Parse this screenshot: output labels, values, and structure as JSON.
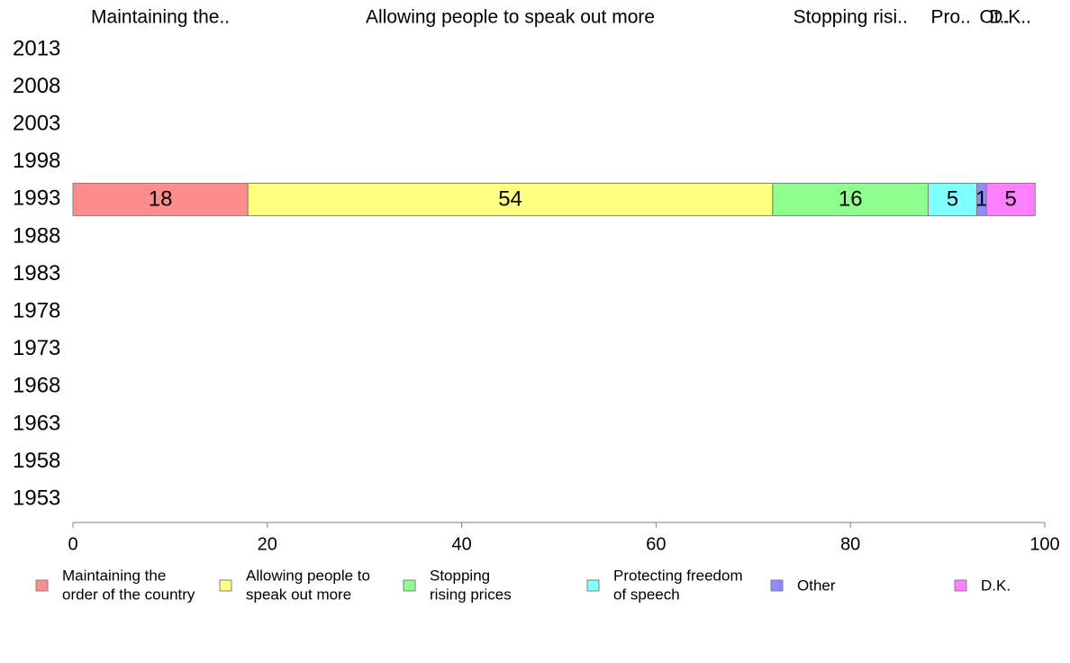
{
  "chart_data": {
    "type": "bar",
    "orientation": "horizontal",
    "stacked": true,
    "categories": [
      "2013",
      "2008",
      "2003",
      "1998",
      "1993",
      "1988",
      "1983",
      "1978",
      "1973",
      "1968",
      "1963",
      "1958",
      "1953"
    ],
    "series": [
      {
        "name": "Maintaining the order of the country",
        "legend_lines": [
          "Maintaining the",
          "order of the country"
        ],
        "top_label": "Maintaining the..",
        "color": "#FF8C8C",
        "values": [
          null,
          null,
          null,
          null,
          18,
          null,
          null,
          null,
          null,
          null,
          null,
          null,
          null
        ]
      },
      {
        "name": "Allowing people to speak out more",
        "legend_lines": [
          "Allowing people to",
          "speak out more"
        ],
        "top_label": "Allowing people to speak out more",
        "color": "#FFFF80",
        "values": [
          null,
          null,
          null,
          null,
          54,
          null,
          null,
          null,
          null,
          null,
          null,
          null,
          null
        ]
      },
      {
        "name": "Stopping rising prices",
        "legend_lines": [
          "Stopping",
          "rising prices"
        ],
        "top_label": "Stopping risi..",
        "color": "#8CFF8C",
        "values": [
          null,
          null,
          null,
          null,
          16,
          null,
          null,
          null,
          null,
          null,
          null,
          null,
          null
        ]
      },
      {
        "name": "Protecting freedom of speech",
        "legend_lines": [
          "Protecting freedom",
          "of speech"
        ],
        "top_label": "Pro..",
        "color": "#80FFFF",
        "values": [
          null,
          null,
          null,
          null,
          5,
          null,
          null,
          null,
          null,
          null,
          null,
          null,
          null
        ]
      },
      {
        "name": "Other",
        "legend_lines": [
          "Other"
        ],
        "top_label": "Ot..",
        "color": "#8C8CFF",
        "values": [
          null,
          null,
          null,
          null,
          1,
          null,
          null,
          null,
          null,
          null,
          null,
          null,
          null
        ]
      },
      {
        "name": "D.K.",
        "legend_lines": [
          "D.K."
        ],
        "top_label": "D.K..",
        "color": "#FF80FF",
        "values": [
          null,
          null,
          null,
          null,
          5,
          null,
          null,
          null,
          null,
          null,
          null,
          null,
          null
        ]
      }
    ],
    "xlim": [
      0,
      100
    ],
    "xticks": [
      "0",
      "20",
      "40",
      "60",
      "80",
      "100"
    ],
    "xlabel": "",
    "ylabel": "",
    "title": "",
    "grid": false,
    "legend": "bottom"
  }
}
